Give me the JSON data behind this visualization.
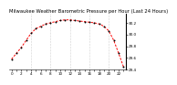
{
  "title": "Milwaukee Weather Barometric Pressure per Hour (Last 24 Hours)",
  "x_values": [
    0,
    1,
    2,
    3,
    4,
    5,
    6,
    7,
    8,
    9,
    10,
    11,
    12,
    13,
    14,
    15,
    16,
    17,
    18,
    19,
    20,
    21,
    22,
    23
  ],
  "y_values": [
    29.58,
    29.68,
    29.78,
    29.9,
    30.02,
    30.1,
    30.14,
    30.18,
    30.2,
    30.22,
    30.24,
    30.25,
    30.25,
    30.24,
    30.23,
    30.22,
    30.21,
    30.2,
    30.18,
    30.14,
    30.06,
    29.9,
    29.68,
    29.45
  ],
  "line_color": "#ff0000",
  "marker_color": "#000000",
  "ylim_min": 29.4,
  "ylim_max": 30.35,
  "ytick_values": [
    29.4,
    29.6,
    29.8,
    30.0,
    30.2
  ],
  "ytick_labels": [
    "29.4",
    "29.6",
    "29.8",
    "30.0",
    "30.2"
  ],
  "background_color": "#ffffff",
  "grid_color": "#aaaaaa",
  "grid_x_positions": [
    4,
    8,
    12,
    16,
    20
  ],
  "title_fontsize": 3.8,
  "tick_fontsize": 3.0,
  "line_width": 0.7,
  "marker_size": 2.0
}
